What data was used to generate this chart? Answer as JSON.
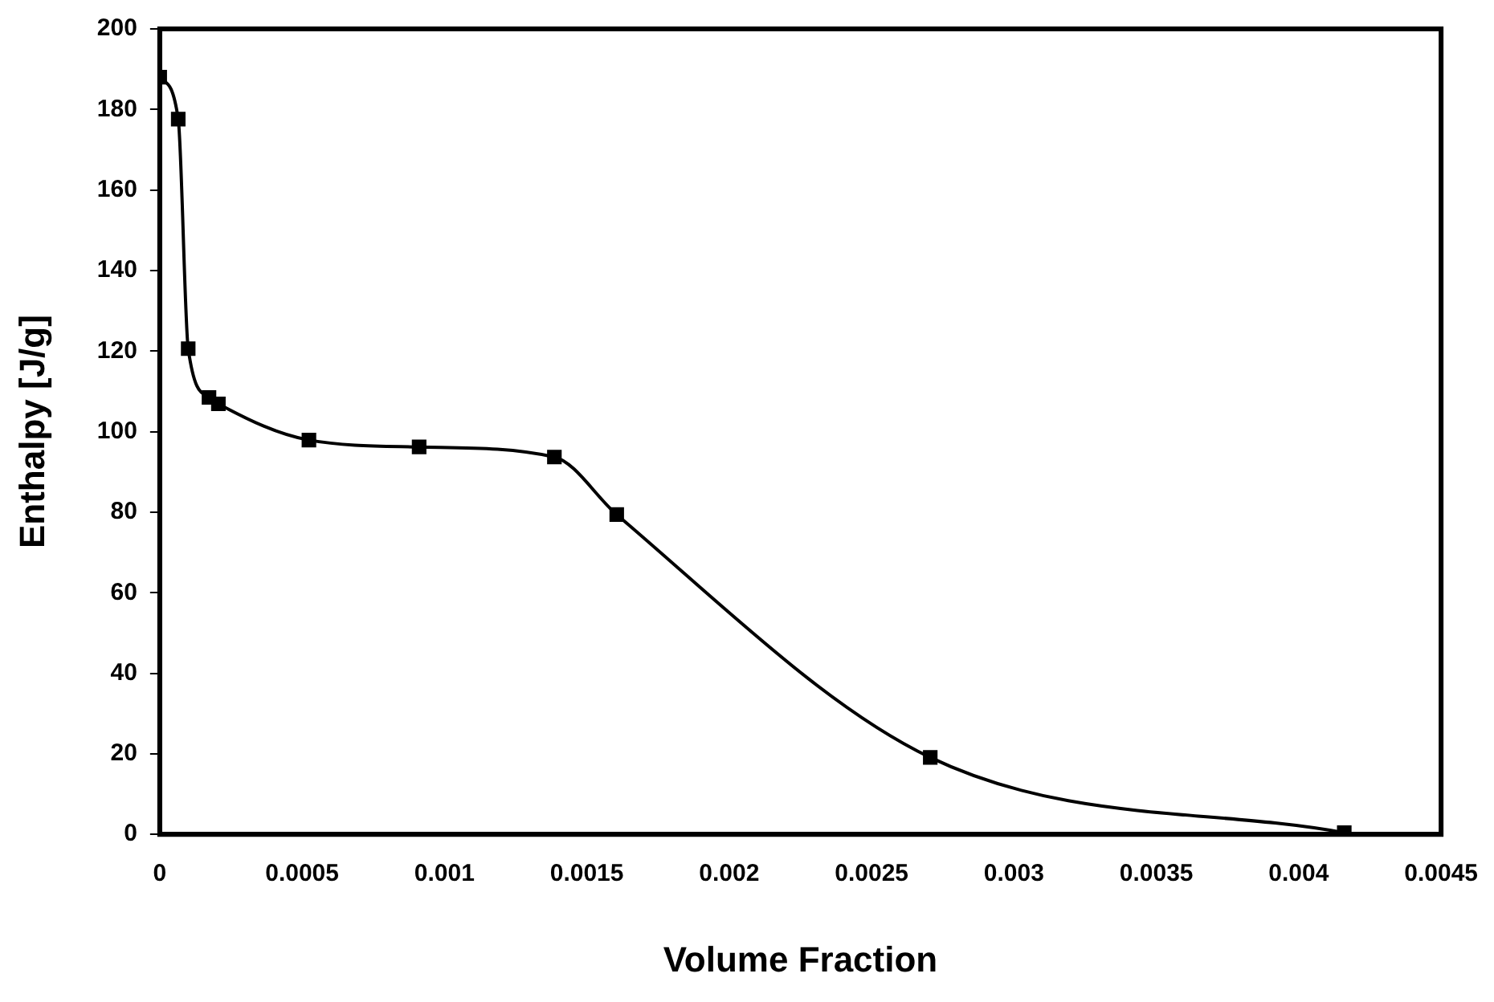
{
  "chart_data": {
    "type": "line",
    "xlabel": "Volume Fraction",
    "ylabel": "Enthalpy [J/g]",
    "x": [
      0,
      6.5e-05,
      0.0001,
      0.000173,
      0.000206,
      0.000524,
      0.000911,
      0.001386,
      0.001605,
      0.002706,
      0.00416
    ],
    "series": [
      {
        "color": "#000000",
        "values": [
          188,
          177.6,
          120.6,
          108.5,
          106.9,
          97.9,
          96.2,
          93.7,
          79.4,
          19.1,
          0.4
        ]
      }
    ],
    "xlim": [
      0,
      0.0045
    ],
    "xticks": [
      0,
      0.0005,
      0.001,
      0.0015,
      0.002,
      0.0025,
      0.003,
      0.0035,
      0.004,
      0.0045
    ],
    "ylim": [
      0,
      200
    ],
    "yticks": [
      0,
      20,
      40,
      60,
      80,
      100,
      120,
      140,
      160,
      180,
      200
    ],
    "grid": false,
    "legend": false,
    "marker": "square",
    "line_style": "solid"
  }
}
